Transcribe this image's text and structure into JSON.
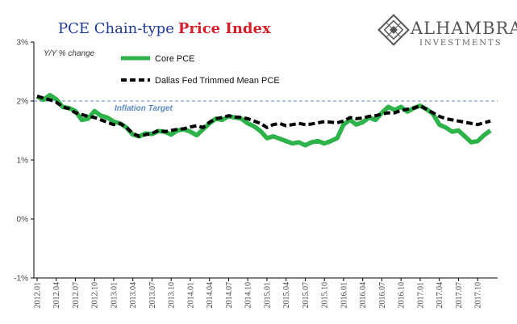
{
  "chart_data": {
    "type": "line",
    "title_part1": "PCE Chain-type",
    "title_part2": "Price Index",
    "ylabel": "Y/Y % change",
    "xlabel": "",
    "ylim": [
      -1,
      3
    ],
    "yticks": [
      -1,
      0,
      1,
      2,
      3
    ],
    "ytick_labels": [
      "-1%",
      "0%",
      "1%",
      "2%",
      "3%"
    ],
    "grid": false,
    "legend_position": "top-left",
    "x_tick_labels": [
      "2012.01",
      "2012.04",
      "2012.07",
      "2012.10",
      "2013.01",
      "2013.04",
      "2013.07",
      "2013.10",
      "2014.01",
      "2014.04",
      "2014.07",
      "2014.10",
      "2015.01",
      "2015.04",
      "2015.07",
      "2015.10",
      "2016.01",
      "2016.04",
      "2016.07",
      "2016.10",
      "2017.01",
      "2017.04",
      "2017.07",
      "2017.10"
    ],
    "x": [
      "2012.01",
      "2012.02",
      "2012.03",
      "2012.04",
      "2012.05",
      "2012.06",
      "2012.07",
      "2012.08",
      "2012.09",
      "2012.10",
      "2012.11",
      "2012.12",
      "2013.01",
      "2013.02",
      "2013.03",
      "2013.04",
      "2013.05",
      "2013.06",
      "2013.07",
      "2013.08",
      "2013.09",
      "2013.10",
      "2013.11",
      "2013.12",
      "2014.01",
      "2014.02",
      "2014.03",
      "2014.04",
      "2014.05",
      "2014.06",
      "2014.07",
      "2014.08",
      "2014.09",
      "2014.10",
      "2014.11",
      "2014.12",
      "2015.01",
      "2015.02",
      "2015.03",
      "2015.04",
      "2015.05",
      "2015.06",
      "2015.07",
      "2015.08",
      "2015.09",
      "2015.10",
      "2015.11",
      "2015.12",
      "2016.01",
      "2016.02",
      "2016.03",
      "2016.04",
      "2016.05",
      "2016.06",
      "2016.07",
      "2016.08",
      "2016.09",
      "2016.10",
      "2016.11",
      "2016.12",
      "2017.01",
      "2017.02",
      "2017.03",
      "2017.04",
      "2017.05",
      "2017.06",
      "2017.07",
      "2017.08",
      "2017.09",
      "2017.10",
      "2017.11",
      "2017.12"
    ],
    "series": [
      {
        "name": "Core PCE",
        "color": "#2db34a",
        "style": "solid",
        "values": [
          2.08,
          2.02,
          2.1,
          2.03,
          1.9,
          1.88,
          1.83,
          1.68,
          1.7,
          1.83,
          1.75,
          1.72,
          1.65,
          1.62,
          1.55,
          1.43,
          1.4,
          1.45,
          1.44,
          1.49,
          1.48,
          1.43,
          1.5,
          1.52,
          1.48,
          1.42,
          1.52,
          1.62,
          1.7,
          1.68,
          1.74,
          1.72,
          1.7,
          1.62,
          1.57,
          1.49,
          1.37,
          1.4,
          1.36,
          1.32,
          1.28,
          1.3,
          1.25,
          1.3,
          1.32,
          1.28,
          1.32,
          1.37,
          1.6,
          1.68,
          1.6,
          1.64,
          1.72,
          1.68,
          1.8,
          1.9,
          1.85,
          1.9,
          1.82,
          1.88,
          1.92,
          1.86,
          1.78,
          1.6,
          1.55,
          1.48,
          1.5,
          1.4,
          1.3,
          1.32,
          1.42,
          1.5
        ]
      },
      {
        "name": "Dallas Fed Trimmed Mean PCE",
        "color": "#000000",
        "style": "dashed",
        "values": [
          2.08,
          2.05,
          2.02,
          1.98,
          1.9,
          1.87,
          1.8,
          1.77,
          1.74,
          1.72,
          1.68,
          1.64,
          1.6,
          1.62,
          1.55,
          1.45,
          1.4,
          1.43,
          1.45,
          1.5,
          1.48,
          1.5,
          1.52,
          1.53,
          1.56,
          1.58,
          1.55,
          1.64,
          1.7,
          1.72,
          1.75,
          1.73,
          1.72,
          1.7,
          1.66,
          1.62,
          1.55,
          1.6,
          1.62,
          1.58,
          1.6,
          1.62,
          1.6,
          1.61,
          1.63,
          1.65,
          1.64,
          1.63,
          1.66,
          1.72,
          1.7,
          1.71,
          1.74,
          1.75,
          1.78,
          1.8,
          1.8,
          1.84,
          1.86,
          1.88,
          1.92,
          1.86,
          1.8,
          1.74,
          1.7,
          1.68,
          1.66,
          1.64,
          1.62,
          1.6,
          1.63,
          1.66
        ]
      }
    ],
    "reference_lines": [
      {
        "y": 2.0,
        "label": "Inflation Target",
        "color": "#5b8ac6",
        "style": "dashed"
      }
    ]
  },
  "logo": {
    "name": "ALHAMBRA",
    "subtitle": "INVESTMENTS"
  }
}
